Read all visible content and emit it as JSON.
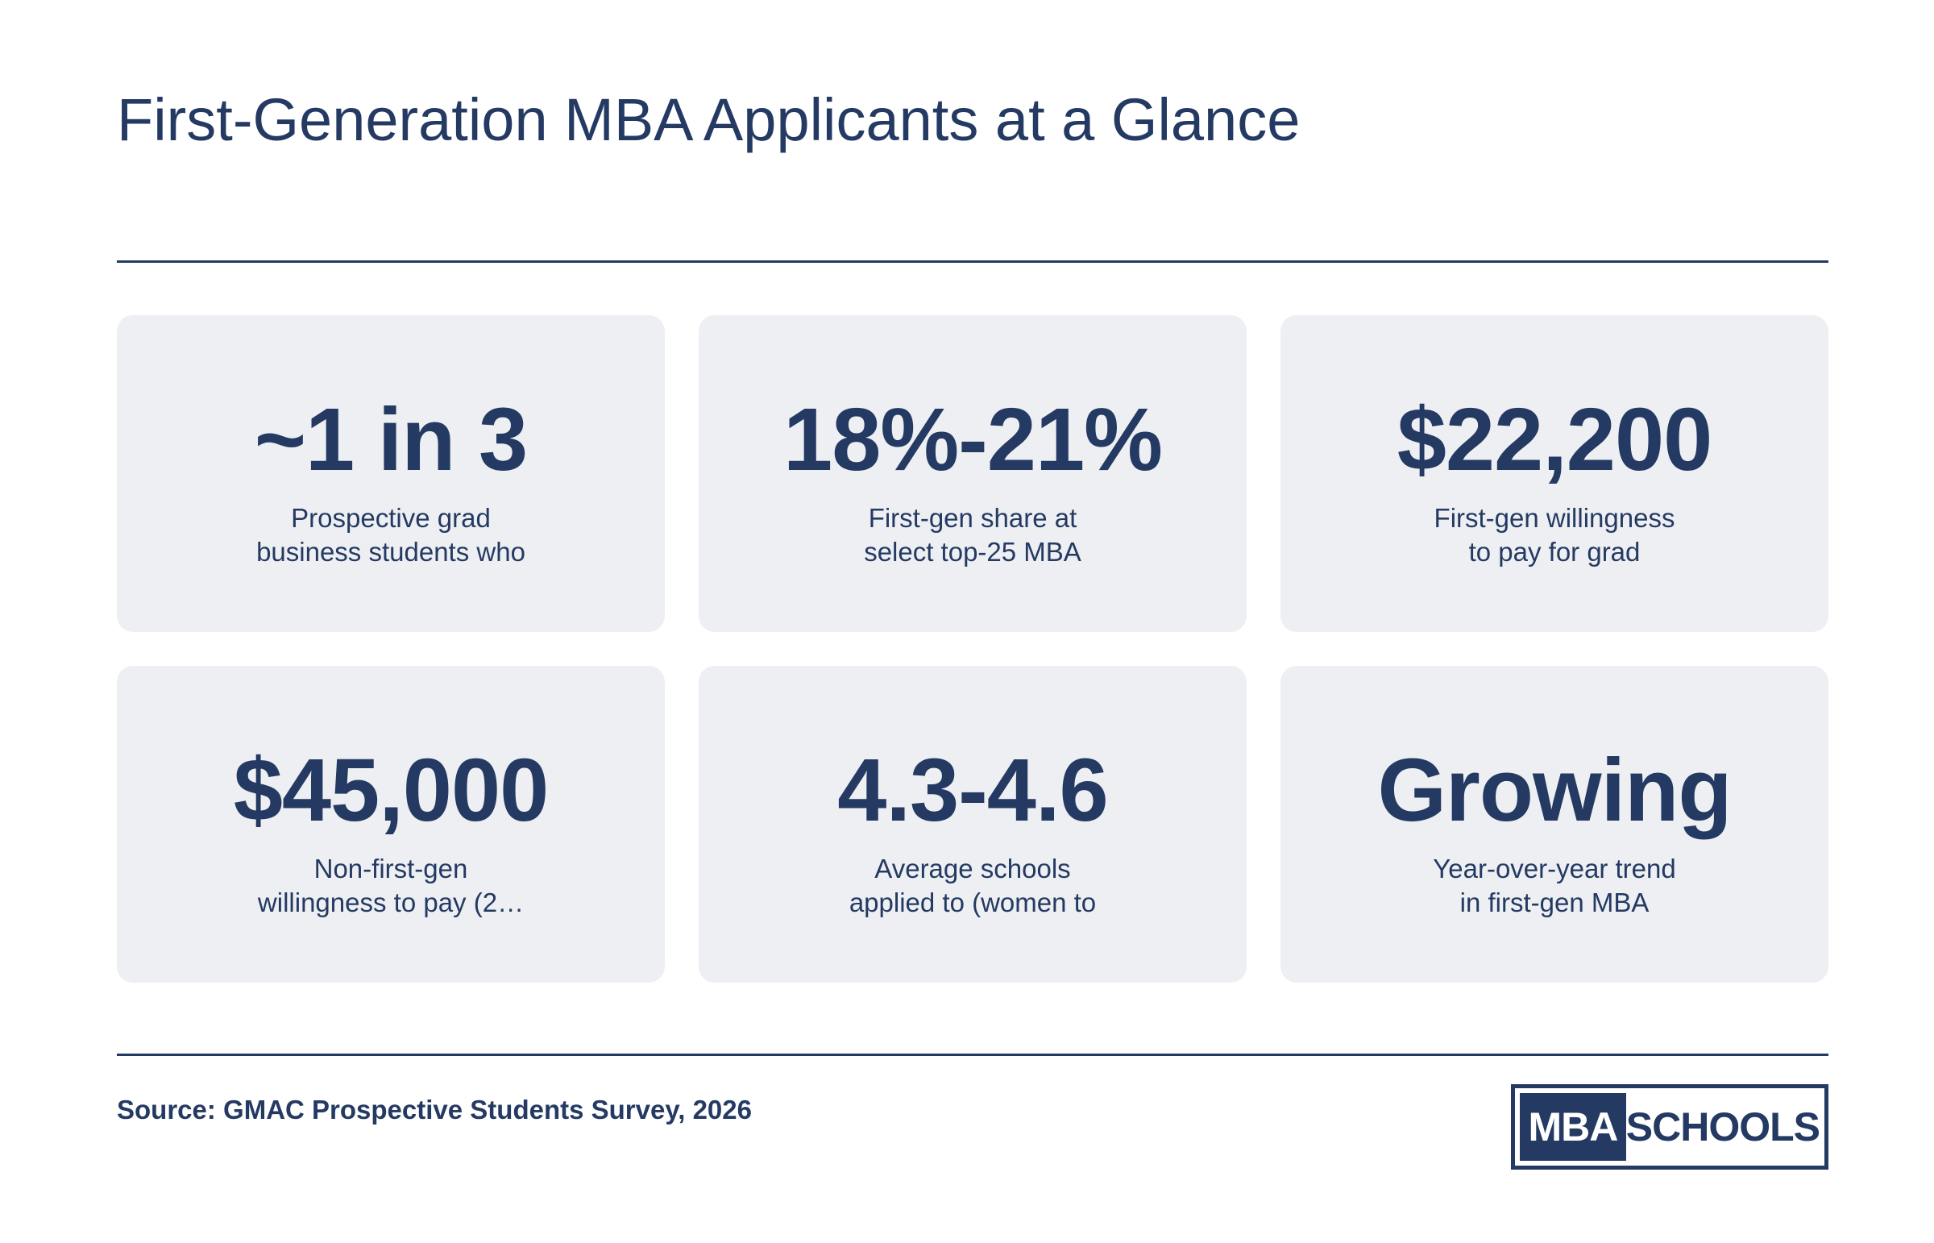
{
  "title": "First-Generation MBA Applicants at a Glance",
  "cards": [
    {
      "value": "~1 in 3",
      "label_line1": "Prospective grad",
      "label_line2": "business students who"
    },
    {
      "value": "18%-21%",
      "label_line1": "First-gen share at",
      "label_line2": "select top-25 MBA"
    },
    {
      "value": "$22,200",
      "label_line1": "First-gen willingness",
      "label_line2": "to pay for grad"
    },
    {
      "value": "$45,000",
      "label_line1": "Non-first-gen",
      "label_line2": "willingness to pay (2…"
    },
    {
      "value": "4.3-4.6",
      "label_line1": "Average schools",
      "label_line2": "applied to (women to"
    },
    {
      "value": "Growing",
      "label_line1": "Year-over-year trend",
      "label_line2": "in first-gen MBA"
    }
  ],
  "source": "Source: GMAC Prospective Students Survey, 2026",
  "logo": {
    "left": "MBA",
    "right": "SCHOOLS"
  },
  "colors": {
    "primary": "#243a63",
    "card_bg": "#eeeff2",
    "background": "#ffffff"
  }
}
